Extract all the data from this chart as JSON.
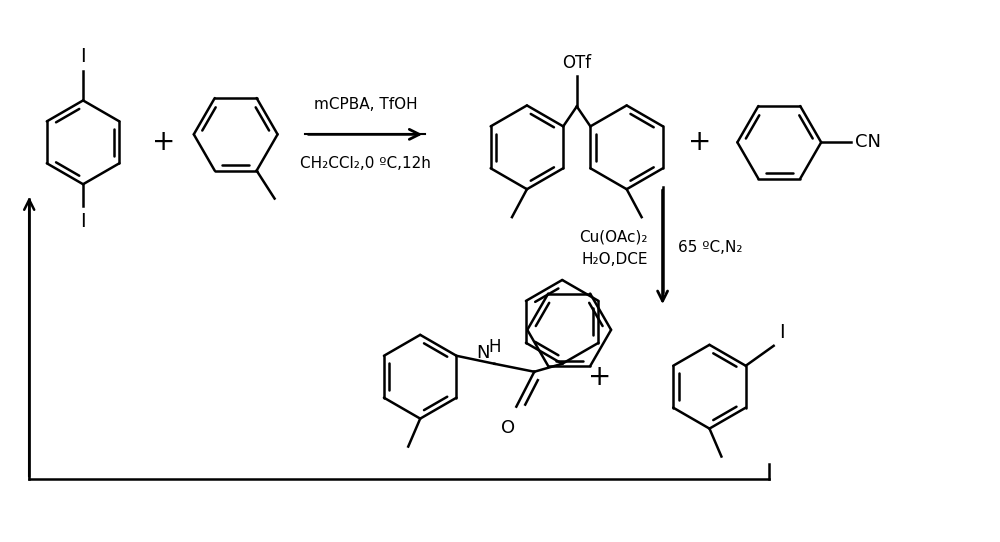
{
  "bg_color": "#ffffff",
  "line_color": "#000000",
  "reaction1_reagents_top": "mCPBA, TfOH",
  "reaction1_reagents_bot": "CH₂CCl₂,0 ºC,12h",
  "reaction2_left_line1": "Cu(OAc)₂",
  "reaction2_left_line2": "H₂O,DCE",
  "reaction2_right": "65 ºC,N₂",
  "label_OTf": "OTf",
  "label_CN": "CN",
  "label_I_top": "I",
  "label_I_bot": "I",
  "figsize": [
    10.0,
    5.42
  ],
  "dpi": 100
}
